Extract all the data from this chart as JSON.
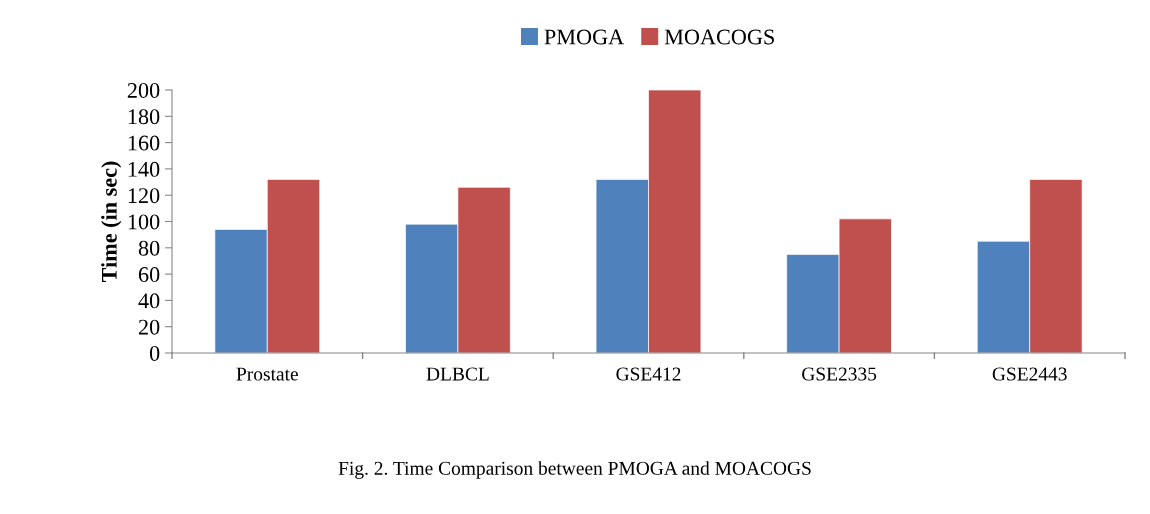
{
  "chart_data": {
    "type": "bar",
    "categories": [
      "Prostate",
      "DLBCL",
      "GSE412",
      "GSE2335",
      "GSE2443"
    ],
    "series": [
      {
        "name": "PMOGA",
        "color": "#4f81bd",
        "values": [
          94,
          98,
          132,
          75,
          85
        ]
      },
      {
        "name": "MOACOGS",
        "color": "#c0504d",
        "values": [
          132,
          126,
          200,
          102,
          132
        ]
      }
    ],
    "ylabel": "Time (in sec)",
    "ylim": [
      0,
      200
    ],
    "yticks": [
      0,
      20,
      40,
      60,
      80,
      100,
      120,
      140,
      160,
      180,
      200
    ],
    "grid": false,
    "legend": "top",
    "annotations": [
      "Fig. 2. Time Comparison between PMOGA and MOACOGS"
    ]
  }
}
